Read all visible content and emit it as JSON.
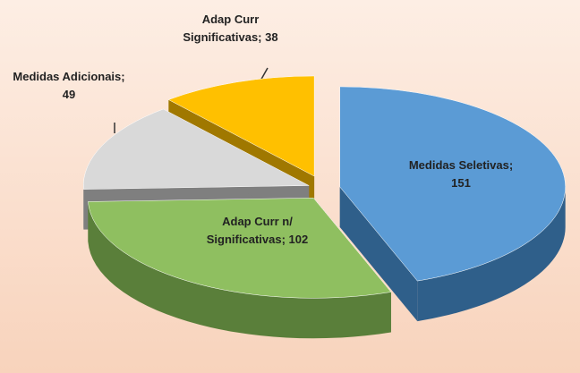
{
  "chart_data": {
    "type": "pie3d",
    "categories": [
      "Medidas Seletivas;",
      "Adap Curr n/ Significativas;",
      "Medidas Adicionais;",
      "Adap Curr Significativas;"
    ],
    "values": [
      151,
      102,
      49,
      38
    ],
    "colors": [
      "#5b9bd5",
      "#8fbf60",
      "#d9d9d9",
      "#ffc000"
    ],
    "side_colors": [
      "#2f5f8a",
      "#5a7f3a",
      "#7f7f7f",
      "#a07800"
    ]
  }
}
